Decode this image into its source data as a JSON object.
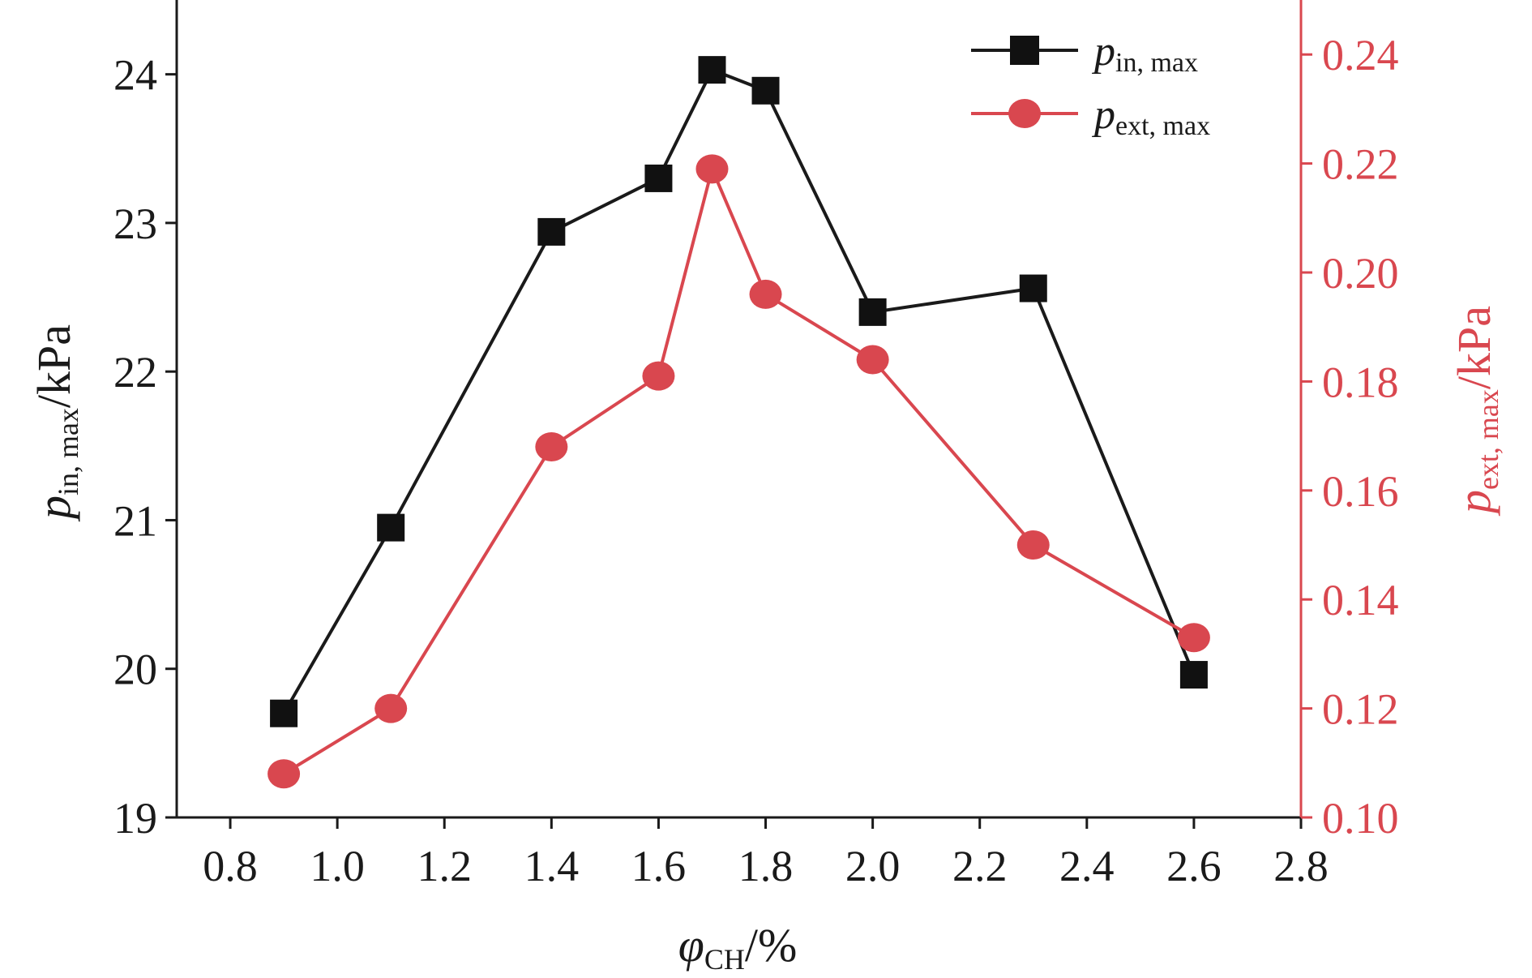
{
  "chart_data": {
    "type": "line",
    "x": [
      0.9,
      1.1,
      1.4,
      1.6,
      1.7,
      1.8,
      2.0,
      2.3,
      2.6
    ],
    "xlim": [
      0.7,
      2.8
    ],
    "xticks": [
      "0.8",
      "1.0",
      "1.2",
      "1.4",
      "1.6",
      "1.8",
      "2.0",
      "2.2",
      "2.4",
      "2.6",
      "2.8"
    ],
    "xlabel": {
      "main": "φ",
      "sub": "CH",
      "unit": "/%"
    },
    "series": [
      {
        "name": {
          "main": "p",
          "sub": "in, max"
        },
        "axis": "left",
        "marker": "square",
        "color": "#1a1a1a",
        "values": [
          19.7,
          20.95,
          22.94,
          23.3,
          24.03,
          23.89,
          22.4,
          22.56,
          19.96
        ]
      },
      {
        "name": {
          "main": "p",
          "sub": "ext, max"
        },
        "axis": "right",
        "marker": "circle",
        "color": "#d9474f",
        "values": [
          0.108,
          0.12,
          0.168,
          0.181,
          0.219,
          0.196,
          0.184,
          0.15,
          0.133
        ]
      }
    ],
    "y_left": {
      "label": {
        "main": "p",
        "sub": "in, max",
        "unit": "/kPa"
      },
      "lim": [
        19,
        24.5
      ],
      "ticks": [
        "19",
        "20",
        "21",
        "22",
        "23",
        "24"
      ]
    },
    "y_right": {
      "label": {
        "main": "p",
        "sub": "ext, max",
        "unit": "/kPa"
      },
      "lim": [
        0.1,
        0.25
      ],
      "ticks": [
        "0.10",
        "0.12",
        "0.14",
        "0.16",
        "0.18",
        "0.20",
        "0.22",
        "0.24"
      ]
    },
    "legend_position": "top-right",
    "grid": false
  },
  "colors": {
    "left_series": "#1a1a1a",
    "right_series": "#d9474f",
    "axis_left": "#1a1a1a",
    "axis_right": "#d9474f"
  }
}
